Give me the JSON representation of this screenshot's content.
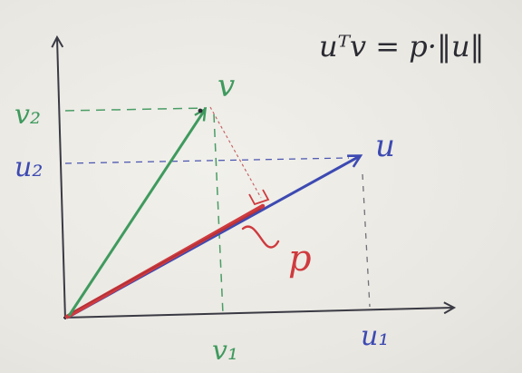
{
  "diagram": {
    "type": "vector-projection-sketch",
    "equation": "uᵀv = p·‖u‖",
    "labels": {
      "v": "v",
      "u": "u",
      "p": "p",
      "v1": "v₁",
      "v2": "v₂",
      "u1": "u₁",
      "u2": "u₂"
    },
    "colors": {
      "axes": "#3a3a44",
      "v_vector": "#3f9a5e",
      "u_vector": "#3d4ab2",
      "projection": "#cf3a3e",
      "dashed_green": "#4a9d66",
      "dashed_blue": "#4a55b0",
      "dashed_gray": "#707078",
      "perp_line": "#c45a5e",
      "ink_black": "#2b2b33"
    }
  }
}
